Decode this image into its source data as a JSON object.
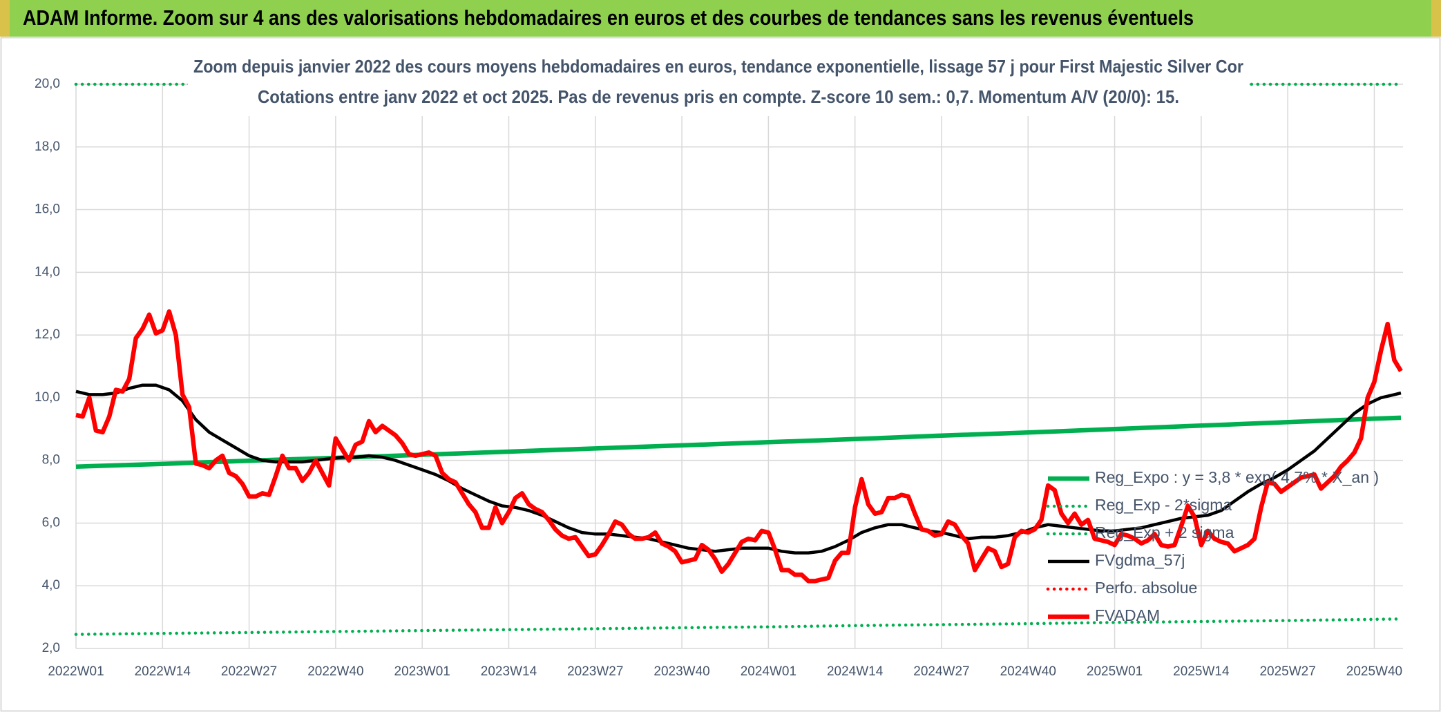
{
  "header": {
    "title": "ADAM Informe. Zoom sur 4 ans des valorisations hebdomadaires en euros et des courbes de tendances sans les revenus éventuels"
  },
  "chart_data": {
    "type": "line",
    "title": "Zoom depuis janvier 2022 des cours moyens hebdomadaires en euros, tendance exponentielle, lissage 57 j pour First Majestic Silver Cor",
    "subtitle": "Cotations entre janv 2022 et oct 2025. Pas de revenus pris en compte. Z-score 10 sem.: 0,7. Momentum A/V (20/0): 15.",
    "xlim": [
      0,
      199
    ],
    "xticks": [
      {
        "value": 0,
        "label": "2022W01"
      },
      {
        "value": 13,
        "label": "2022W14"
      },
      {
        "value": 26,
        "label": "2022W27"
      },
      {
        "value": 39,
        "label": "2022W40"
      },
      {
        "value": 52,
        "label": "2023W01"
      },
      {
        "value": 65,
        "label": "2023W14"
      },
      {
        "value": 78,
        "label": "2023W27"
      },
      {
        "value": 91,
        "label": "2023W40"
      },
      {
        "value": 104,
        "label": "2024W01"
      },
      {
        "value": 117,
        "label": "2024W14"
      },
      {
        "value": 130,
        "label": "2024W27"
      },
      {
        "value": 143,
        "label": "2024W40"
      },
      {
        "value": 156,
        "label": "2025W01"
      },
      {
        "value": 169,
        "label": "2025W14"
      },
      {
        "value": 182,
        "label": "2025W27"
      },
      {
        "value": 195,
        "label": "2025W40"
      }
    ],
    "ylim": [
      2,
      20
    ],
    "yticks": [
      {
        "value": 2,
        "label": "2,0"
      },
      {
        "value": 4,
        "label": "4,0"
      },
      {
        "value": 6,
        "label": "6,0"
      },
      {
        "value": 8,
        "label": "8,0"
      },
      {
        "value": 10,
        "label": "10,0"
      },
      {
        "value": 12,
        "label": "12,0"
      },
      {
        "value": 14,
        "label": "14,0"
      },
      {
        "value": 16,
        "label": "16,0"
      },
      {
        "value": 18,
        "label": "18,0"
      },
      {
        "value": 20,
        "label": "20,0"
      }
    ],
    "grid": true,
    "legend": "right",
    "series": [
      {
        "name": "Reg_Expo : y = 3,8 * exp( 4,7% * X_an )",
        "color": "#00b050",
        "dotted": false,
        "width": 6.5,
        "x": [
          0,
          13,
          26,
          39,
          52,
          65,
          78,
          91,
          104,
          117,
          130,
          143,
          156,
          169,
          182,
          195,
          199
        ],
        "values": [
          7.8,
          7.89,
          7.99,
          8.08,
          8.18,
          8.28,
          8.38,
          8.48,
          8.58,
          8.68,
          8.79,
          8.89,
          9.0,
          9.11,
          9.22,
          9.33,
          9.36
        ]
      },
      {
        "name": "Reg_Exp - 2*sigma",
        "color": "#00b050",
        "dotted": true,
        "width": 4.5,
        "x": [
          0,
          13,
          26,
          39,
          52,
          65,
          78,
          91,
          104,
          117,
          130,
          143,
          156,
          169,
          182,
          195,
          199
        ],
        "values": [
          2.45,
          2.48,
          2.51,
          2.54,
          2.57,
          2.6,
          2.63,
          2.66,
          2.69,
          2.73,
          2.76,
          2.79,
          2.83,
          2.86,
          2.89,
          2.93,
          2.94
        ]
      },
      {
        "name": "Reg_Exp + 2 sigma",
        "color": "#00b050",
        "dotted": true,
        "width": 4.5,
        "x": [
          0,
          199
        ],
        "values": [
          20,
          20
        ]
      },
      {
        "name": "FVgdma_57j",
        "color": "#000000",
        "dotted": false,
        "width": 4.5,
        "x": [
          0,
          2,
          4,
          6,
          8,
          10,
          12,
          14,
          16,
          18,
          20,
          22,
          24,
          26,
          28,
          30,
          32,
          34,
          36,
          38,
          40,
          42,
          44,
          46,
          48,
          50,
          52,
          54,
          56,
          58,
          60,
          62,
          64,
          66,
          68,
          70,
          72,
          74,
          76,
          78,
          80,
          82,
          84,
          86,
          88,
          90,
          92,
          94,
          96,
          98,
          100,
          102,
          104,
          106,
          108,
          110,
          112,
          114,
          116,
          118,
          120,
          122,
          124,
          126,
          128,
          130,
          132,
          134,
          136,
          138,
          140,
          142,
          144,
          146,
          148,
          150,
          152,
          154,
          156,
          158,
          160,
          162,
          164,
          166,
          168,
          170,
          172,
          174,
          176,
          178,
          180,
          182,
          184,
          186,
          188,
          190,
          192,
          194,
          196,
          198,
          199
        ],
        "values": [
          10.2,
          10.1,
          10.1,
          10.15,
          10.3,
          10.4,
          10.4,
          10.25,
          9.9,
          9.3,
          8.9,
          8.65,
          8.4,
          8.15,
          8.0,
          7.95,
          7.95,
          7.95,
          8.0,
          8.05,
          8.1,
          8.1,
          8.15,
          8.1,
          8.0,
          7.85,
          7.7,
          7.55,
          7.35,
          7.1,
          6.9,
          6.7,
          6.55,
          6.5,
          6.4,
          6.25,
          6.05,
          5.85,
          5.7,
          5.65,
          5.65,
          5.6,
          5.55,
          5.5,
          5.4,
          5.3,
          5.2,
          5.15,
          5.1,
          5.15,
          5.2,
          5.2,
          5.2,
          5.1,
          5.05,
          5.05,
          5.1,
          5.25,
          5.45,
          5.7,
          5.85,
          5.95,
          5.95,
          5.85,
          5.75,
          5.7,
          5.6,
          5.5,
          5.55,
          5.55,
          5.6,
          5.7,
          5.85,
          5.95,
          5.9,
          5.85,
          5.8,
          5.75,
          5.75,
          5.8,
          5.85,
          5.95,
          6.05,
          6.15,
          6.2,
          6.25,
          6.4,
          6.7,
          7.0,
          7.25,
          7.45,
          7.7,
          8.0,
          8.3,
          8.7,
          9.1,
          9.5,
          9.8,
          10.0,
          10.1,
          10.15
        ]
      },
      {
        "name": "Perfo. absolue",
        "color": "#ff0000",
        "dotted": true,
        "width": 4.5,
        "x": [],
        "values": []
      },
      {
        "name": "FVADAM",
        "color": "#ff0000",
        "dotted": false,
        "width": 6.5,
        "x": [
          0,
          1,
          2,
          3,
          4,
          5,
          6,
          7,
          8,
          9,
          10,
          11,
          12,
          13,
          14,
          15,
          16,
          17,
          18,
          19,
          20,
          21,
          22,
          23,
          24,
          25,
          26,
          27,
          28,
          29,
          30,
          31,
          32,
          33,
          34,
          35,
          36,
          37,
          38,
          39,
          40,
          41,
          42,
          43,
          44,
          45,
          46,
          47,
          48,
          49,
          50,
          51,
          52,
          53,
          54,
          55,
          56,
          57,
          58,
          59,
          60,
          61,
          62,
          63,
          64,
          65,
          66,
          67,
          68,
          69,
          70,
          71,
          72,
          73,
          74,
          75,
          76,
          77,
          78,
          79,
          80,
          81,
          82,
          83,
          84,
          85,
          86,
          87,
          88,
          89,
          90,
          91,
          92,
          93,
          94,
          95,
          96,
          97,
          98,
          99,
          100,
          101,
          102,
          103,
          104,
          105,
          106,
          107,
          108,
          109,
          110,
          111,
          112,
          113,
          114,
          115,
          116,
          117,
          118,
          119,
          120,
          121,
          122,
          123,
          124,
          125,
          126,
          127,
          128,
          129,
          130,
          131,
          132,
          133,
          134,
          135,
          136,
          137,
          138,
          139,
          140,
          141,
          142,
          143,
          144,
          145,
          146,
          147,
          148,
          149,
          150,
          151,
          152,
          153,
          154,
          155,
          156,
          157,
          158,
          159,
          160,
          161,
          162,
          163,
          164,
          165,
          166,
          167,
          168,
          169,
          170,
          171,
          172,
          173,
          174,
          175,
          176,
          177,
          178,
          179,
          180,
          181,
          182,
          183,
          184,
          185,
          186,
          187,
          188,
          189,
          190,
          191,
          192,
          193,
          194,
          195,
          196,
          197,
          198,
          199
        ],
        "values": [
          9.45,
          9.4,
          10.0,
          8.95,
          8.9,
          9.4,
          10.25,
          10.2,
          10.6,
          11.9,
          12.2,
          12.65,
          12.05,
          12.15,
          12.75,
          12.0,
          10.1,
          9.7,
          7.9,
          7.85,
          7.75,
          8.0,
          8.15,
          7.6,
          7.5,
          7.25,
          6.85,
          6.85,
          6.95,
          6.9,
          7.5,
          8.15,
          7.75,
          7.75,
          7.35,
          7.6,
          8.0,
          7.6,
          7.2,
          8.7,
          8.35,
          8.0,
          8.5,
          8.6,
          9.25,
          8.9,
          9.1,
          8.95,
          8.8,
          8.55,
          8.2,
          8.15,
          8.2,
          8.25,
          8.15,
          7.6,
          7.4,
          7.3,
          6.95,
          6.6,
          6.35,
          5.85,
          5.85,
          6.5,
          6.0,
          6.35,
          6.8,
          6.95,
          6.6,
          6.45,
          6.35,
          6.1,
          5.8,
          5.6,
          5.5,
          5.55,
          5.25,
          4.95,
          5.0,
          5.3,
          5.65,
          6.05,
          5.95,
          5.65,
          5.5,
          5.5,
          5.55,
          5.7,
          5.35,
          5.25,
          5.1,
          4.75,
          4.8,
          4.85,
          5.3,
          5.15,
          4.85,
          4.45,
          4.7,
          5.05,
          5.4,
          5.5,
          5.45,
          5.75,
          5.7,
          5.15,
          4.5,
          4.5,
          4.35,
          4.35,
          4.15,
          4.15,
          4.2,
          4.25,
          4.8,
          5.05,
          5.05,
          6.5,
          7.4,
          6.6,
          6.3,
          6.35,
          6.8,
          6.8,
          6.9,
          6.85,
          6.3,
          5.8,
          5.75,
          5.6,
          5.65,
          6.05,
          5.95,
          5.6,
          5.35,
          4.5,
          4.85,
          5.2,
          5.1,
          4.6,
          4.7,
          5.55,
          5.75,
          5.7,
          5.8,
          6.1,
          7.2,
          7.05,
          6.3,
          6.0,
          6.3,
          5.95,
          6.1,
          5.5,
          5.45,
          5.4,
          5.3,
          5.65,
          5.6,
          5.5,
          5.35,
          5.45,
          5.65,
          5.3,
          5.25,
          5.3,
          5.9,
          6.55,
          6.2,
          5.3,
          5.75,
          5.5,
          5.4,
          5.35,
          5.1,
          5.2,
          5.3,
          5.5,
          6.5,
          7.3,
          7.25,
          7.0,
          7.15,
          7.3,
          7.45,
          7.5,
          7.55,
          7.1,
          7.3,
          7.5,
          7.8,
          8.0,
          8.25,
          8.7,
          10.0,
          10.5,
          11.5,
          12.35,
          11.2,
          10.85
        ]
      }
    ]
  }
}
